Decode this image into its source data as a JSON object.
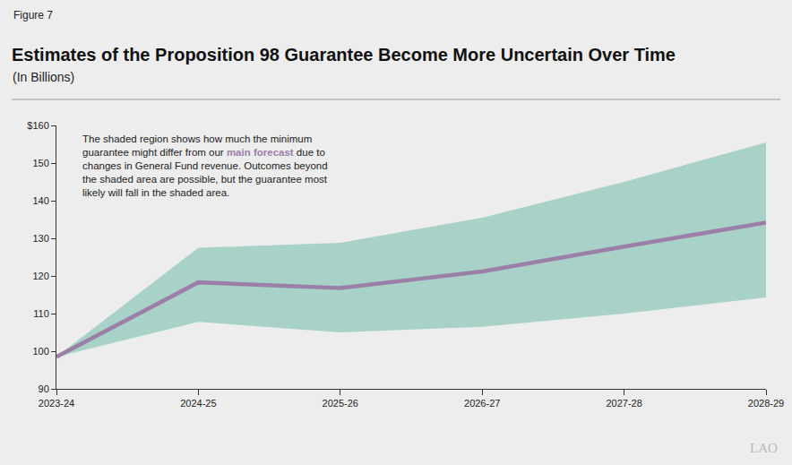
{
  "chart_data": {
    "type": "line",
    "figure_label": "Figure 7",
    "title": "Estimates of the Proposition 98 Guarantee Become More Uncertain Over Time",
    "subtitle": "(In Billions)",
    "annotation": {
      "lines": [
        "The shaded region shows how much the minimum",
        "guarantee might differ from our main forecast due to",
        "changes in General Fund revenue. Outcomes beyond",
        "the shaded area are possible, but the guarantee most",
        "likely will fall in the shaded area."
      ],
      "highlight": "main forecast"
    },
    "categories": [
      "2023-24",
      "2024-25",
      "2025-26",
      "2026-27",
      "2027-28",
      "2028-29"
    ],
    "series": [
      {
        "name": "main forecast",
        "color": "#9c7fa8",
        "values": [
          98.5,
          118.3,
          116.8,
          121.2,
          127.8,
          134.2
        ]
      }
    ],
    "band": {
      "lower": [
        98.5,
        107.8,
        105.0,
        106.5,
        110.0,
        114.3
      ],
      "upper": [
        98.5,
        127.5,
        128.8,
        135.5,
        145.0,
        155.5
      ],
      "color": "#a8d2c7"
    },
    "ylim": [
      90,
      160
    ],
    "yticks": [
      90,
      100,
      110,
      120,
      130,
      140,
      150,
      {
        "value": 160,
        "label": "$160"
      }
    ],
    "grid": false,
    "logo": "LAO"
  }
}
